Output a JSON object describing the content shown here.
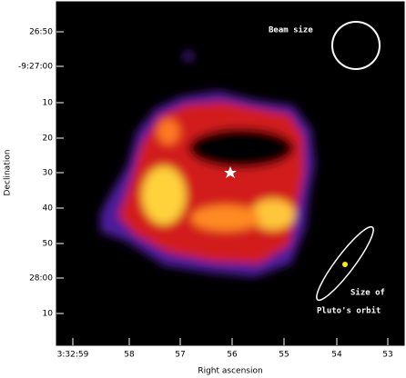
{
  "figure": {
    "x_axis_label": "Right ascension",
    "y_axis_label": "Declination",
    "x_ticks": [
      "3:32:59",
      "58",
      "57",
      "56",
      "55",
      "54",
      "53"
    ],
    "y_ticks": [
      "26:50",
      "-9:27:00",
      "10",
      "20",
      "30",
      "40",
      "50",
      "28:00",
      "10"
    ],
    "annotations": {
      "beam": "Beam size",
      "orbit_line1": "Size of",
      "orbit_line2": "Pluto's orbit"
    }
  }
}
